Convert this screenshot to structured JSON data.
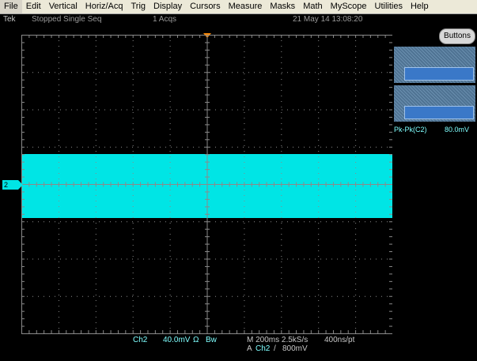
{
  "menu": [
    "File",
    "Edit",
    "Vertical",
    "Horiz/Acq",
    "Trig",
    "Display",
    "Cursors",
    "Measure",
    "Masks",
    "Math",
    "MyScope",
    "Utilities",
    "Help"
  ],
  "status": {
    "brand": "Tek",
    "state": "Stopped  Single Seq",
    "acqs": "1 Acqs",
    "datetime": "21 May 14 13:08:20"
  },
  "right_panel": {
    "buttons_label": "Buttons",
    "measurement_label": "Pk-Pk(C2)",
    "measurement_value": "80.0mV"
  },
  "channel_marker": "2",
  "bottom": {
    "channel": "Ch2",
    "scale": "40.0mV",
    "coupling": "Ω",
    "bw": "Bw",
    "horizontal": "M 200ms 2.5kS/s",
    "trigger_prefix": "A",
    "trigger_channel": "Ch2",
    "trigger_slope": "/",
    "trigger_level": "800mV",
    "record": "400ns/pt"
  },
  "colors": {
    "trace": "#00e5e5",
    "grid": "#8a8a8a",
    "accent_trigger": "#ff8a00"
  }
}
